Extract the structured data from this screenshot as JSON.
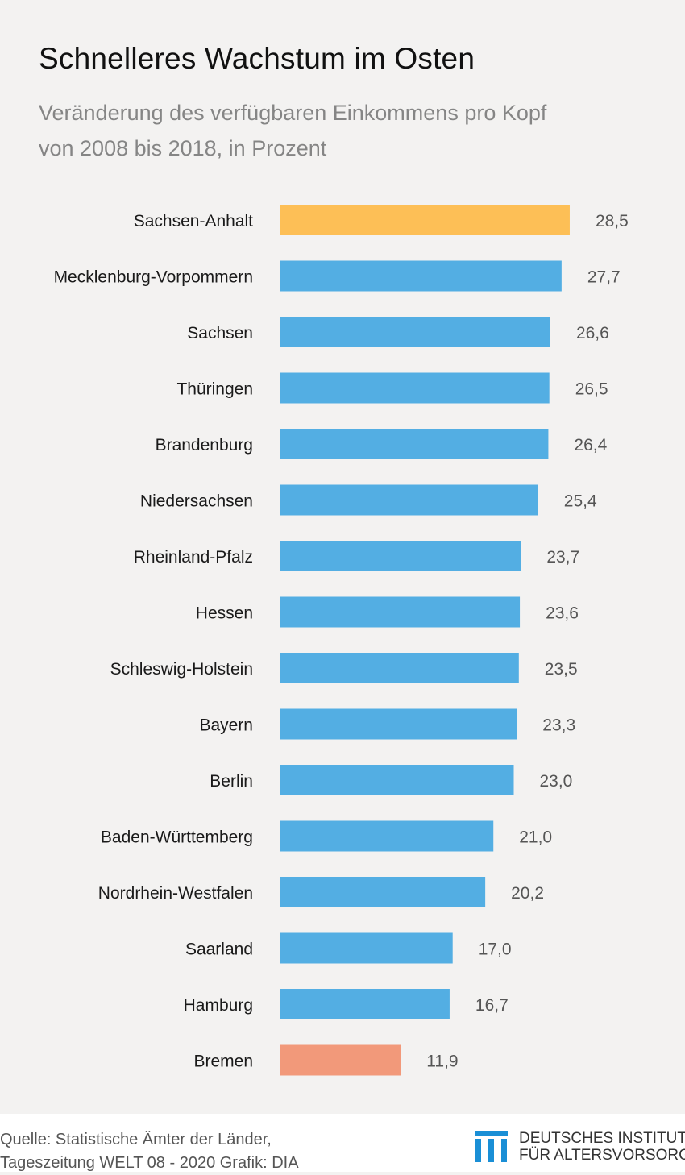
{
  "header": {
    "title": "Schnelleres Wachstum im Osten",
    "subtitle_line1": "Veränderung des verfügbaren Einkommens pro Kopf",
    "subtitle_line2": "von 2008 bis 2018, in Prozent"
  },
  "chart_data": {
    "type": "bar",
    "orientation": "horizontal",
    "title": "Schnelleres Wachstum im Osten",
    "subtitle": "Veränderung des verfügbaren Einkommens pro Kopf von 2008 bis 2018, in Prozent",
    "xlabel": "",
    "ylabel": "",
    "grid": false,
    "categories": [
      "Sachsen-Anhalt",
      "Mecklenburg-Vorpommern",
      "Sachsen",
      "Thüringen",
      "Brandenburg",
      "Niedersachsen",
      "Rheinland-Pfalz",
      "Hessen",
      "Schleswig-Holstein",
      "Bayern",
      "Berlin",
      "Baden-Württemberg",
      "Nordrhein-Westfalen",
      "Saarland",
      "Hamburg",
      "Bremen"
    ],
    "values": [
      28.5,
      27.7,
      26.6,
      26.5,
      26.4,
      25.4,
      23.7,
      23.6,
      23.5,
      23.3,
      23.0,
      21.0,
      20.2,
      17.0,
      16.7,
      11.9
    ],
    "value_labels": [
      "28,5",
      "27,7",
      "26,6",
      "26,5",
      "26,4",
      "25,4",
      "23,7",
      "23,6",
      "23,5",
      "23,3",
      "23,0",
      "21,0",
      "20,2",
      "17,0",
      "16,7",
      "11,9"
    ],
    "colors": {
      "highest": "#fdbf56",
      "default": "#53aee3",
      "lowest": "#f2997a"
    }
  },
  "footer": {
    "source_line1": "Quelle: Statistische Ämter der Länder,",
    "source_line2": "Tageszeitung WELT 08 - 2020  Grafik: DIA",
    "logo_line1": "DEUTSCHES INSTITUT",
    "logo_line2": "FÜR ALTERSVORSORGE",
    "logo_color": "#1a8fd6"
  }
}
